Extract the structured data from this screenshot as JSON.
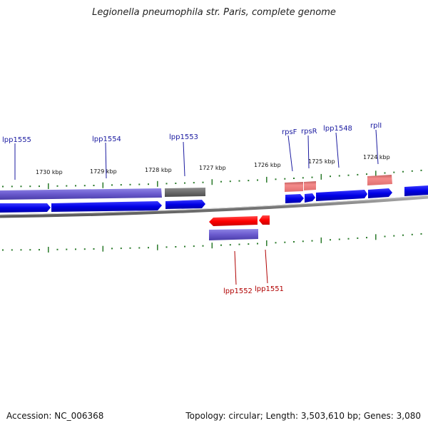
{
  "title": "Legionella pneumophila str. Paris, complete genome",
  "accession": {
    "label": "Accession:",
    "value": "NC_006368"
  },
  "topology_text": "Topology: circular; Length: 3,503,610 bp; Genes: 3,080",
  "kbp_labels": [
    "1730 kbp",
    "1729 kbp",
    "1728 kbp",
    "1727 kbp",
    "1726 kbp",
    "1725 kbp",
    "1724 kbp"
  ],
  "forward_labels": [
    "lpp1555",
    "lpp1554",
    "lpp1553",
    "rpsF",
    "rpsR",
    "lpp1548",
    "rplI"
  ],
  "reverse_labels": [
    "lpp1552",
    "lpp1551"
  ],
  "colors": {
    "cds": "#0000ee",
    "gene_purple": "#6a5acd",
    "gene_gray": "#707070",
    "gene_pink": "#f08080",
    "reverse_cds": "#ff0000",
    "backbone": "#8a8a8a",
    "ticks": "#2a7a2a"
  }
}
